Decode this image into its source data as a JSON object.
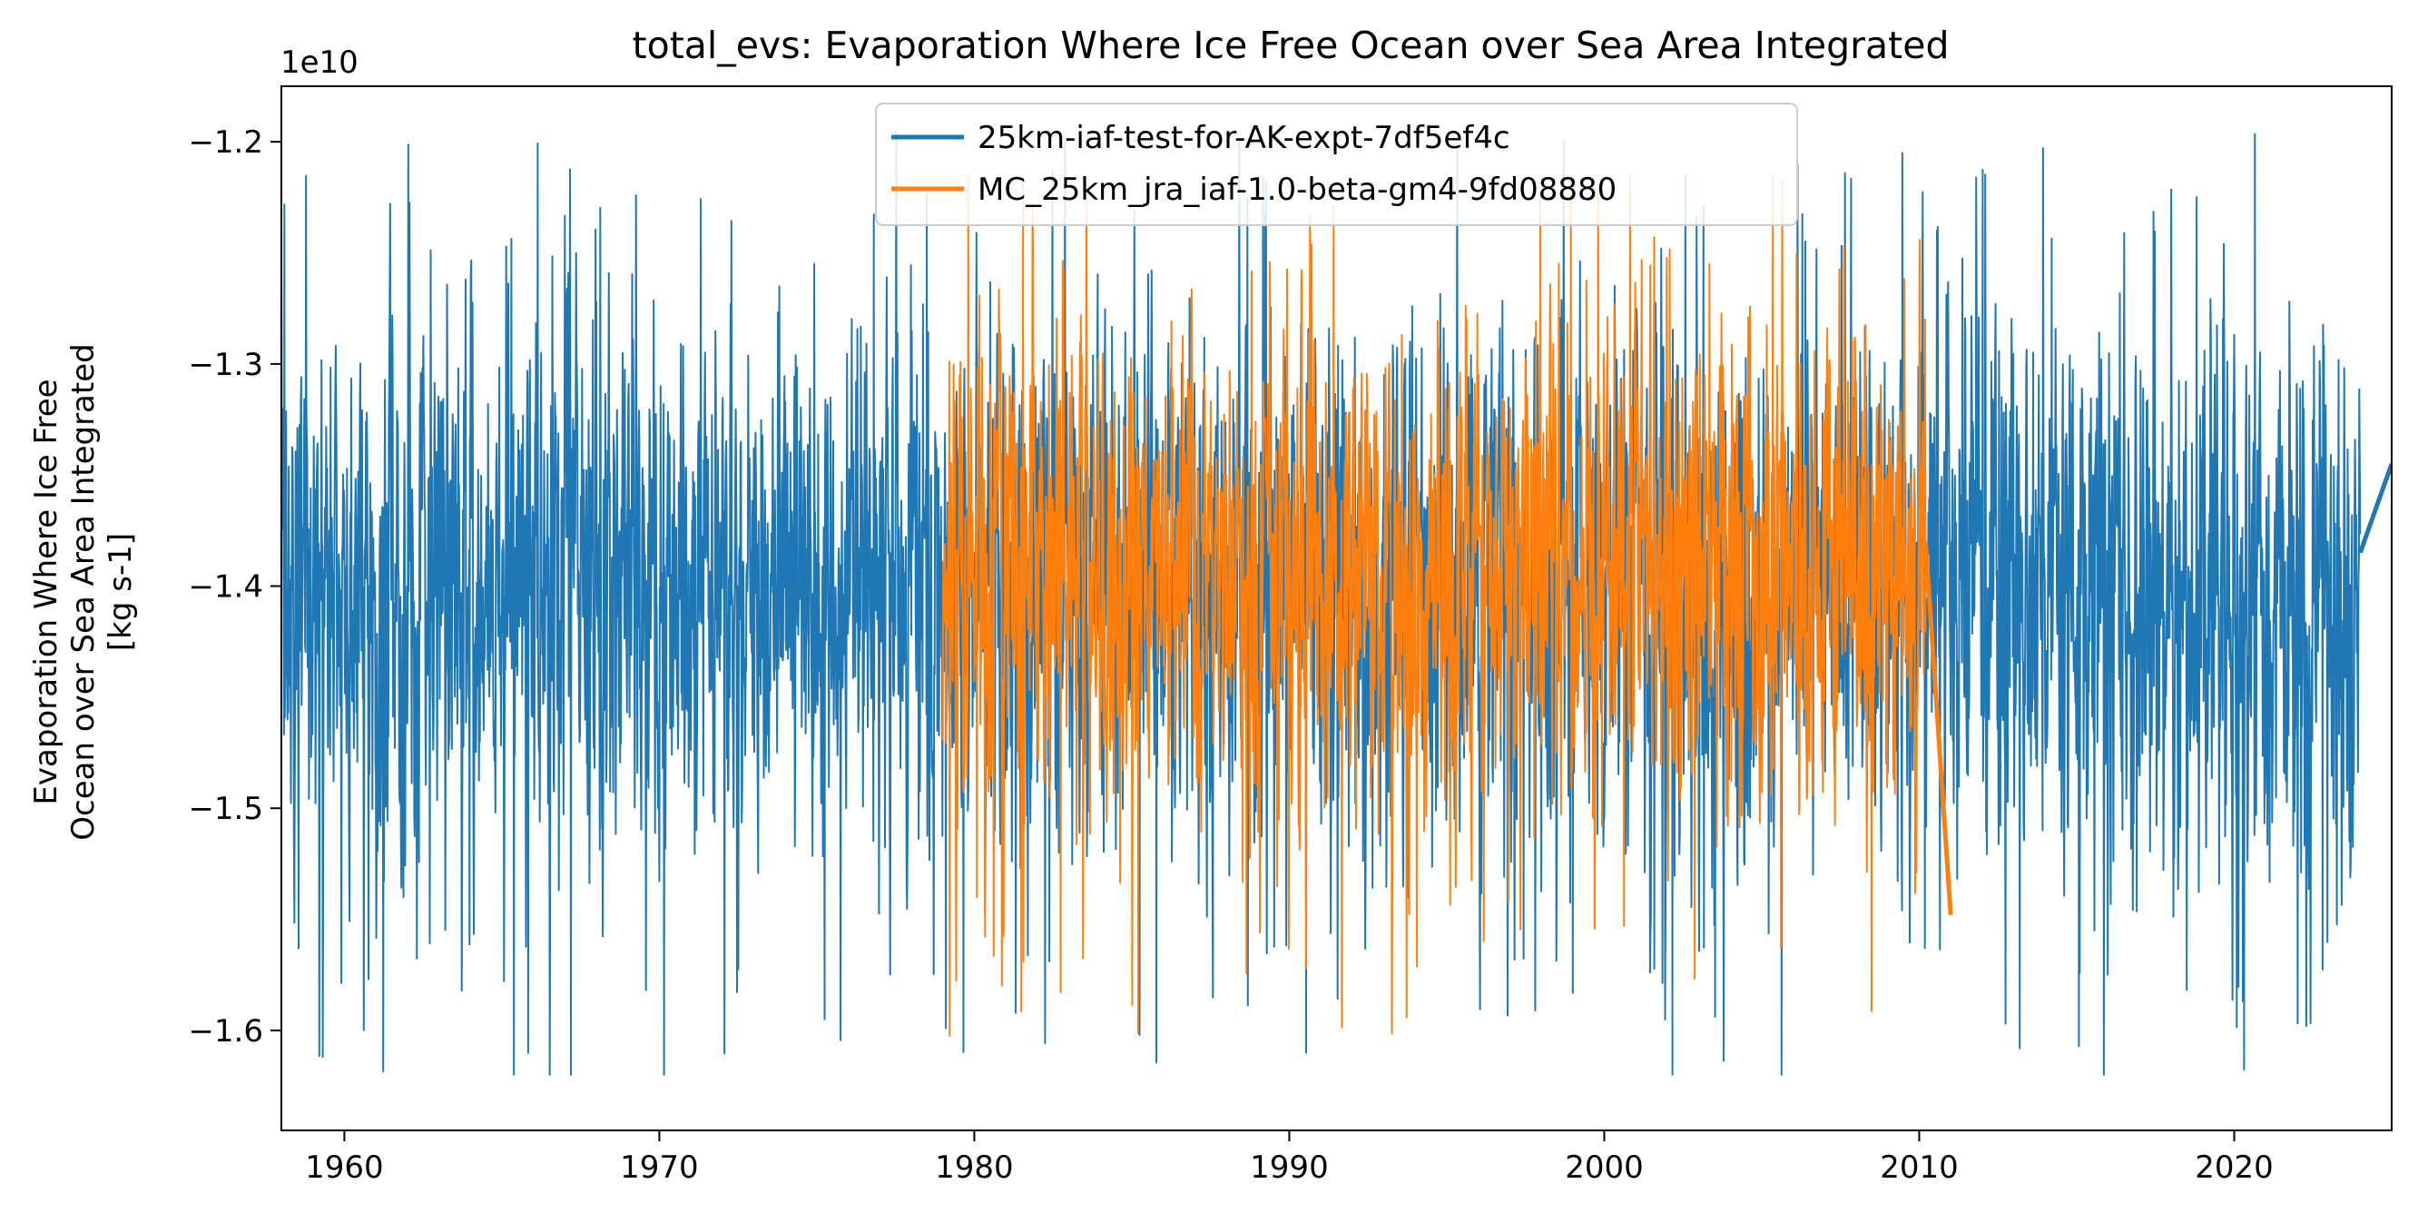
{
  "chart_data": {
    "type": "line",
    "title": "total_evs: Evaporation Where Ice Free Ocean over Sea Area Integrated",
    "xlabel": "",
    "ylabel_lines": [
      "Evaporation Where Ice Free",
      "Ocean over Sea Area Integrated",
      "[kg s-1]"
    ],
    "y_offset_label": "1e10",
    "xlim": [
      1958,
      2025
    ],
    "ylim": [
      -1.645,
      -1.175
    ],
    "x_ticks": [
      1960,
      1970,
      1980,
      1990,
      2000,
      2010,
      2020
    ],
    "y_ticks": [
      -1.6,
      -1.5,
      -1.4,
      -1.3,
      -1.2
    ],
    "y_tick_labels": [
      "−1.6",
      "−1.5",
      "−1.4",
      "−1.3",
      "−1.2"
    ],
    "legend_position": "top-center",
    "series": [
      {
        "name": "25km-iaf-test-for-AK-expt-7df5ef4c",
        "color": "#1f77b4",
        "x_start": 1958.0,
        "x_end": 2024.0,
        "y_mean": -1.4,
        "y_spread": 0.06,
        "y_min": -1.62,
        "y_max": -1.195,
        "tail": {
          "x": [
            2024.0,
            2025.0
          ],
          "y": [
            -1.385,
            -1.345
          ]
        }
      },
      {
        "name": "MC_25km_jra_iaf-1.0-beta-gm4-9fd08880",
        "color": "#ff7f0e",
        "x_start": 1979.0,
        "x_end": 2010.2,
        "y_mean": -1.395,
        "y_spread": 0.055,
        "y_min": -1.61,
        "y_max": -1.215,
        "tail": {
          "x": [
            2010.2,
            2011.0
          ],
          "y": [
            -1.38,
            -1.548
          ]
        }
      }
    ]
  }
}
